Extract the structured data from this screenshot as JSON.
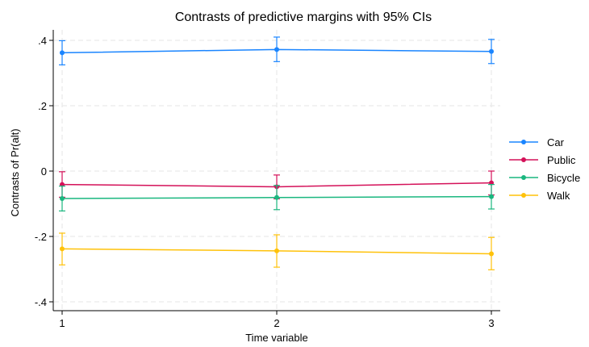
{
  "chart_data": {
    "type": "line",
    "title": "Contrasts of predictive margins with 95% CIs",
    "xlabel": "Time variable",
    "ylabel": "Contrasts of Pr(alt)",
    "x": [
      1,
      2,
      3
    ],
    "x_tick_labels": [
      "1",
      "2",
      "3"
    ],
    "ylim": [
      -0.4,
      0.4
    ],
    "y_ticks": [
      -0.4,
      -0.2,
      0,
      0.2,
      0.4
    ],
    "y_tick_labels": [
      "-.4",
      "-.2",
      "0",
      ".2",
      ".4"
    ],
    "grid": true,
    "legend_position": "right",
    "series": [
      {
        "name": "Car",
        "color": "#1a85ff",
        "values": [
          0.362,
          0.372,
          0.366
        ],
        "ci_low": [
          0.325,
          0.335,
          0.329
        ],
        "ci_high": [
          0.399,
          0.41,
          0.403
        ]
      },
      {
        "name": "Public",
        "color": "#d41159",
        "values": [
          -0.041,
          -0.048,
          -0.036
        ],
        "ci_low": [
          -0.08,
          -0.085,
          -0.073
        ],
        "ci_high": [
          -0.002,
          -0.012,
          0.0
        ]
      },
      {
        "name": "Bicycle",
        "color": "#1ab77f",
        "values": [
          -0.084,
          -0.081,
          -0.078
        ],
        "ci_low": [
          -0.122,
          -0.118,
          -0.116
        ],
        "ci_high": [
          -0.046,
          -0.044,
          -0.041
        ]
      },
      {
        "name": "Walk",
        "color": "#ffc20a",
        "values": [
          -0.238,
          -0.244,
          -0.253
        ],
        "ci_low": [
          -0.287,
          -0.294,
          -0.302
        ],
        "ci_high": [
          -0.19,
          -0.195,
          -0.203
        ]
      }
    ]
  }
}
